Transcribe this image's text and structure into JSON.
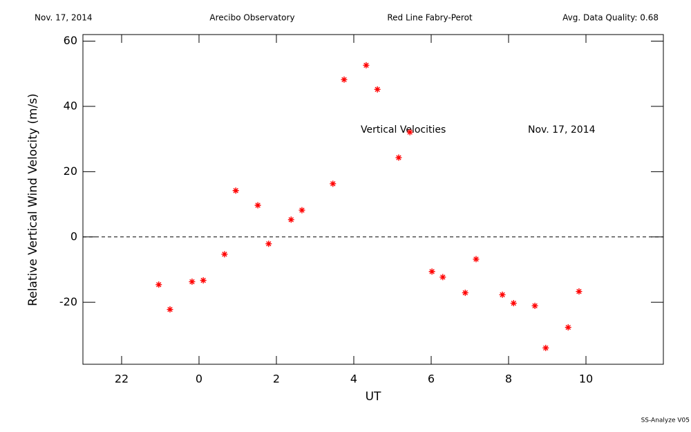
{
  "chart_data": {
    "type": "scatter",
    "header": [
      "Nov. 17, 2014",
      "Arecibo Observatory",
      "Red Line Fabry-Perot",
      "Avg. Data Quality: 0.68"
    ],
    "annotations": [
      "Vertical Velocities",
      "Nov. 17, 2014"
    ],
    "footer": "SS-Analyze V05",
    "xlabel": "UT",
    "ylabel": "Relative Vertical Wind Velocity (m/s)",
    "x": [
      -1.04,
      -0.75,
      -0.18,
      0.11,
      0.66,
      0.95,
      1.52,
      1.8,
      2.38,
      2.66,
      3.46,
      3.75,
      4.32,
      4.61,
      5.16,
      5.45,
      6.02,
      6.3,
      6.88,
      7.16,
      7.84,
      8.13,
      8.68,
      8.96,
      9.54,
      9.82
    ],
    "y": [
      -14.6,
      -22.2,
      -13.7,
      -13.3,
      -5.3,
      14.2,
      9.7,
      -2.1,
      5.3,
      8.2,
      16.3,
      48.2,
      52.6,
      45.2,
      24.3,
      32.1,
      -10.6,
      -12.3,
      -17.1,
      -6.8,
      -17.7,
      -20.3,
      -21.1,
      -34.0,
      -27.7,
      -16.7
    ],
    "color": "#ff0000",
    "xlim": [
      -3,
      12
    ],
    "ylim": [
      -39,
      62
    ],
    "xticks": [
      {
        "value": -2,
        "label": "22"
      },
      0,
      2,
      4,
      6,
      8,
      10
    ],
    "yticks": [
      -20,
      0,
      20,
      40,
      60
    ],
    "hline": 0
  }
}
